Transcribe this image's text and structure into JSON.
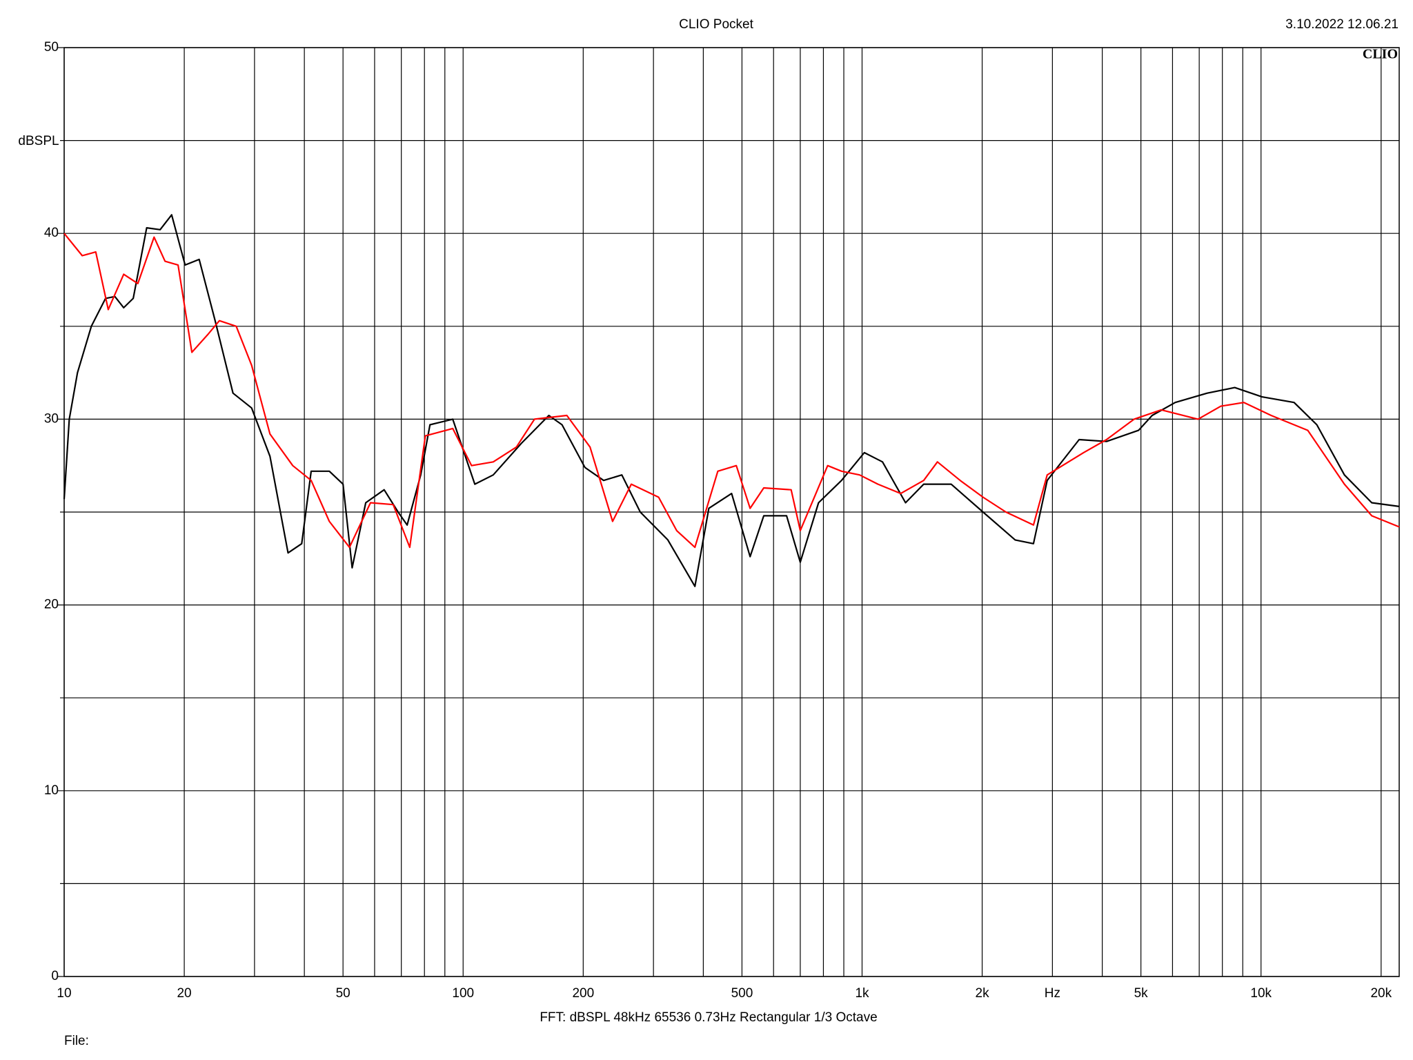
{
  "chart_data": {
    "type": "line",
    "title": "CLIO Pocket",
    "timestamp": "3.10.2022 12.06.21",
    "logo": "CLIO",
    "ylabel": "dBSPL",
    "footer": "FFT:  dBSPL  48kHz  65536  0.73Hz  Rectangular  1/3 Octave",
    "file_label": "File:",
    "log_x": true,
    "grid": true,
    "xlim": [
      10,
      22200
    ],
    "ylim": [
      0,
      50
    ],
    "xticks": [
      10,
      20,
      50,
      100,
      200,
      500,
      {
        "value": 1000,
        "label": "1k"
      },
      {
        "value": 2000,
        "label": "2k"
      },
      {
        "value": 3000,
        "label": "Hz"
      },
      {
        "value": 5000,
        "label": "5k"
      },
      {
        "value": 10000,
        "label": "10k"
      },
      {
        "value": 20000,
        "label": "20k"
      }
    ],
    "xminor": [
      30,
      40,
      60,
      70,
      80,
      90,
      300,
      400,
      600,
      700,
      800,
      900,
      4000,
      6000,
      7000,
      8000,
      9000
    ],
    "yticks": [
      0,
      10,
      20,
      30,
      40,
      50
    ],
    "yminor": [
      5,
      15,
      25,
      35,
      45
    ],
    "series": [
      {
        "color": "#000000",
        "x": [
          10,
          10.3,
          10.8,
          11.7,
          12.7,
          13.4,
          14.1,
          14.9,
          16.1,
          17.4,
          18.6,
          20.1,
          21.8,
          23.9,
          26.5,
          29.5,
          32.8,
          36.4,
          39.4,
          41.6,
          46.2,
          50,
          52.7,
          57.0,
          63.4,
          68.7,
          72.4,
          78.3,
          82.6,
          94.2,
          107,
          119,
          140,
          164,
          177,
          202,
          225,
          250,
          278,
          326,
          381,
          413,
          471,
          524,
          567,
          647,
          700,
          778,
          888,
          1013,
          1125,
          1285,
          1427,
          1672,
          2010,
          2420,
          2689,
          2911,
          3500,
          4100,
          4932,
          5335,
          6095,
          7330,
          8590,
          10060,
          12100,
          13800,
          16180,
          18950,
          22200
        ],
        "values": [
          25.7,
          30,
          32.5,
          35,
          36.5,
          36.6,
          36,
          36.5,
          40.3,
          40.2,
          41,
          38.3,
          38.6,
          35.3,
          31.4,
          30.6,
          28,
          22.8,
          23.3,
          27.2,
          27.2,
          26.5,
          22,
          25.5,
          26.2,
          25,
          24.3,
          27,
          29.7,
          30,
          26.5,
          27,
          28.7,
          30.2,
          29.7,
          27.4,
          26.7,
          27,
          25,
          23.5,
          21,
          25.2,
          26,
          22.6,
          24.8,
          24.8,
          22.3,
          25.5,
          26.7,
          28.2,
          27.7,
          25.5,
          26.5,
          26.5,
          25,
          23.5,
          23.3,
          26.7,
          28.9,
          28.8,
          29.4,
          30.2,
          30.9,
          31.4,
          31.7,
          31.2,
          30.9,
          29.7,
          27,
          25.5,
          25.3
        ]
      },
      {
        "color": "#ff0000",
        "x": [
          10,
          11.1,
          12.0,
          12.9,
          14.1,
          15.3,
          16.8,
          17.9,
          19.3,
          20.9,
          23.0,
          24.5,
          27.0,
          29.5,
          32.8,
          37.4,
          41.6,
          46.2,
          51.9,
          58.6,
          66.8,
          73.5,
          80.4,
          94.2,
          105,
          119,
          136,
          151,
          182,
          208,
          237,
          264,
          309,
          343,
          381,
          435,
          484,
          524,
          567,
          664,
          700,
          820,
          888,
          986,
          1096,
          1250,
          1427,
          1545,
          1762,
          2010,
          2294,
          2689,
          2911,
          3590,
          4100,
          4808,
          5623,
          6950,
          7930,
          9057,
          10600,
          13100,
          16180,
          18950,
          22200
        ],
        "values": [
          40,
          38.8,
          39,
          35.9,
          37.8,
          37.3,
          39.8,
          38.5,
          38.3,
          33.6,
          34.6,
          35.3,
          35,
          32.9,
          29.2,
          27.5,
          26.7,
          24.5,
          23.1,
          25.5,
          25.4,
          23.1,
          29.1,
          29.5,
          27.5,
          27.7,
          28.5,
          30,
          30.2,
          28.5,
          24.5,
          26.5,
          25.8,
          24,
          23.1,
          27.2,
          27.5,
          25.2,
          26.3,
          26.2,
          24,
          27.5,
          27.2,
          27,
          26.5,
          26,
          26.7,
          27.7,
          26.7,
          25.8,
          25,
          24.3,
          27,
          28.2,
          28.9,
          30,
          30.5,
          30,
          30.7,
          30.9,
          30.2,
          29.4,
          26.5,
          24.8,
          24.2
        ]
      }
    ]
  }
}
